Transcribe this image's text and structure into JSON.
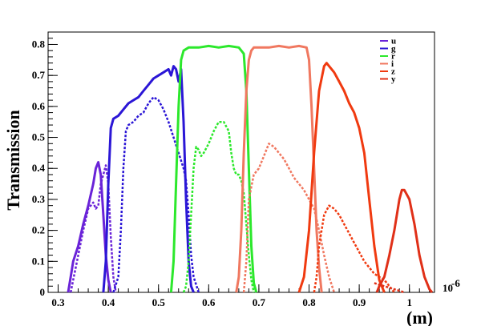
{
  "chart_data": {
    "type": "line",
    "title": "",
    "xlabel": "(m)",
    "x_exponent": "10",
    "x_exponent_power": "-6",
    "ylabel": "Transmission",
    "xlim": [
      0.28,
      1.05
    ],
    "ylim": [
      0,
      0.84
    ],
    "xticks": [
      0.3,
      0.4,
      0.5,
      0.6,
      0.7,
      0.8,
      0.9,
      1.0
    ],
    "xtick_labels": [
      "0.3",
      "0.4",
      "0.5",
      "0.6",
      "0.7",
      "0.8",
      "0.9",
      "1"
    ],
    "yticks": [
      0,
      0.1,
      0.2,
      0.3,
      0.4,
      0.5,
      0.6,
      0.7,
      0.8
    ],
    "ytick_labels": [
      "0",
      "0.1",
      "0.2",
      "0.3",
      "0.4",
      "0.5",
      "0.6",
      "0.7",
      "0.8"
    ],
    "legend_position": "top-right",
    "legend": [
      {
        "name": "u",
        "color": "#6a23d8"
      },
      {
        "name": "g",
        "color": "#2b16d6"
      },
      {
        "name": "r",
        "color": "#2ce82c"
      },
      {
        "name": "i",
        "color": "#f07860"
      },
      {
        "name": "z",
        "color": "#f03a10"
      },
      {
        "name": "y",
        "color": "#e03018"
      }
    ],
    "series": [
      {
        "band": "u",
        "style": "solid",
        "color": "#6a23d8",
        "points": [
          [
            0.32,
            0.0
          ],
          [
            0.325,
            0.05
          ],
          [
            0.33,
            0.1
          ],
          [
            0.34,
            0.15
          ],
          [
            0.35,
            0.22
          ],
          [
            0.36,
            0.28
          ],
          [
            0.37,
            0.35
          ],
          [
            0.375,
            0.4
          ],
          [
            0.38,
            0.42
          ],
          [
            0.385,
            0.38
          ],
          [
            0.39,
            0.25
          ],
          [
            0.395,
            0.12
          ],
          [
            0.4,
            0.04
          ],
          [
            0.405,
            0.0
          ]
        ]
      },
      {
        "band": "u",
        "style": "dotted",
        "color": "#6a23d8",
        "points": [
          [
            0.325,
            0.0
          ],
          [
            0.33,
            0.04
          ],
          [
            0.34,
            0.12
          ],
          [
            0.35,
            0.2
          ],
          [
            0.36,
            0.27
          ],
          [
            0.37,
            0.29
          ],
          [
            0.375,
            0.27
          ],
          [
            0.38,
            0.28
          ],
          [
            0.385,
            0.35
          ],
          [
            0.39,
            0.38
          ],
          [
            0.395,
            0.41
          ],
          [
            0.4,
            0.35
          ],
          [
            0.405,
            0.18
          ],
          [
            0.41,
            0.05
          ],
          [
            0.415,
            0.0
          ]
        ]
      },
      {
        "band": "g",
        "style": "solid",
        "color": "#2b16d6",
        "points": [
          [
            0.39,
            0.0
          ],
          [
            0.395,
            0.1
          ],
          [
            0.4,
            0.35
          ],
          [
            0.405,
            0.53
          ],
          [
            0.41,
            0.56
          ],
          [
            0.42,
            0.57
          ],
          [
            0.43,
            0.59
          ],
          [
            0.44,
            0.61
          ],
          [
            0.45,
            0.62
          ],
          [
            0.46,
            0.63
          ],
          [
            0.47,
            0.65
          ],
          [
            0.48,
            0.67
          ],
          [
            0.49,
            0.69
          ],
          [
            0.5,
            0.7
          ],
          [
            0.51,
            0.71
          ],
          [
            0.52,
            0.72
          ],
          [
            0.525,
            0.7
          ],
          [
            0.53,
            0.73
          ],
          [
            0.535,
            0.72
          ],
          [
            0.54,
            0.68
          ],
          [
            0.545,
            0.72
          ],
          [
            0.55,
            0.55
          ],
          [
            0.555,
            0.3
          ],
          [
            0.56,
            0.1
          ],
          [
            0.565,
            0.02
          ],
          [
            0.57,
            0.0
          ]
        ]
      },
      {
        "band": "g",
        "style": "dotted",
        "color": "#2b16d6",
        "points": [
          [
            0.41,
            0.0
          ],
          [
            0.42,
            0.05
          ],
          [
            0.425,
            0.2
          ],
          [
            0.43,
            0.4
          ],
          [
            0.435,
            0.52
          ],
          [
            0.44,
            0.54
          ],
          [
            0.45,
            0.55
          ],
          [
            0.46,
            0.57
          ],
          [
            0.47,
            0.58
          ],
          [
            0.48,
            0.61
          ],
          [
            0.49,
            0.63
          ],
          [
            0.5,
            0.62
          ],
          [
            0.51,
            0.59
          ],
          [
            0.52,
            0.55
          ],
          [
            0.53,
            0.5
          ],
          [
            0.54,
            0.45
          ],
          [
            0.55,
            0.4
          ],
          [
            0.555,
            0.36
          ],
          [
            0.56,
            0.25
          ],
          [
            0.565,
            0.12
          ],
          [
            0.57,
            0.05
          ],
          [
            0.58,
            0.0
          ]
        ]
      },
      {
        "band": "r",
        "style": "solid",
        "color": "#2ce82c",
        "points": [
          [
            0.525,
            0.0
          ],
          [
            0.53,
            0.1
          ],
          [
            0.535,
            0.35
          ],
          [
            0.54,
            0.6
          ],
          [
            0.545,
            0.75
          ],
          [
            0.55,
            0.78
          ],
          [
            0.56,
            0.79
          ],
          [
            0.58,
            0.79
          ],
          [
            0.6,
            0.795
          ],
          [
            0.62,
            0.79
          ],
          [
            0.64,
            0.795
          ],
          [
            0.66,
            0.79
          ],
          [
            0.67,
            0.77
          ],
          [
            0.675,
            0.65
          ],
          [
            0.68,
            0.4
          ],
          [
            0.685,
            0.15
          ],
          [
            0.69,
            0.03
          ],
          [
            0.695,
            0.0
          ]
        ]
      },
      {
        "band": "r",
        "style": "dotted",
        "color": "#2ce82c",
        "points": [
          [
            0.55,
            0.0
          ],
          [
            0.555,
            0.02
          ],
          [
            0.56,
            0.1
          ],
          [
            0.565,
            0.25
          ],
          [
            0.57,
            0.4
          ],
          [
            0.575,
            0.47
          ],
          [
            0.58,
            0.46
          ],
          [
            0.585,
            0.44
          ],
          [
            0.59,
            0.45
          ],
          [
            0.6,
            0.48
          ],
          [
            0.61,
            0.52
          ],
          [
            0.62,
            0.55
          ],
          [
            0.63,
            0.55
          ],
          [
            0.64,
            0.52
          ],
          [
            0.645,
            0.45
          ],
          [
            0.65,
            0.4
          ],
          [
            0.655,
            0.38
          ],
          [
            0.66,
            0.38
          ],
          [
            0.665,
            0.36
          ],
          [
            0.67,
            0.32
          ],
          [
            0.675,
            0.22
          ],
          [
            0.68,
            0.12
          ],
          [
            0.685,
            0.04
          ],
          [
            0.69,
            0.0
          ]
        ]
      },
      {
        "band": "i",
        "style": "solid",
        "color": "#f07860",
        "points": [
          [
            0.655,
            0.0
          ],
          [
            0.66,
            0.05
          ],
          [
            0.665,
            0.2
          ],
          [
            0.67,
            0.45
          ],
          [
            0.675,
            0.65
          ],
          [
            0.68,
            0.75
          ],
          [
            0.685,
            0.78
          ],
          [
            0.69,
            0.79
          ],
          [
            0.7,
            0.79
          ],
          [
            0.72,
            0.79
          ],
          [
            0.74,
            0.795
          ],
          [
            0.76,
            0.79
          ],
          [
            0.78,
            0.795
          ],
          [
            0.795,
            0.79
          ],
          [
            0.8,
            0.75
          ],
          [
            0.805,
            0.6
          ],
          [
            0.81,
            0.4
          ],
          [
            0.815,
            0.2
          ],
          [
            0.82,
            0.08
          ],
          [
            0.825,
            0.0
          ]
        ]
      },
      {
        "band": "i",
        "style": "dotted",
        "color": "#f07860",
        "points": [
          [
            0.67,
            0.0
          ],
          [
            0.675,
            0.1
          ],
          [
            0.68,
            0.3
          ],
          [
            0.69,
            0.38
          ],
          [
            0.7,
            0.4
          ],
          [
            0.71,
            0.44
          ],
          [
            0.72,
            0.48
          ],
          [
            0.73,
            0.47
          ],
          [
            0.74,
            0.45
          ],
          [
            0.75,
            0.43
          ],
          [
            0.76,
            0.4
          ],
          [
            0.77,
            0.37
          ],
          [
            0.78,
            0.35
          ],
          [
            0.79,
            0.33
          ],
          [
            0.8,
            0.3
          ],
          [
            0.81,
            0.27
          ],
          [
            0.82,
            0.2
          ],
          [
            0.83,
            0.12
          ],
          [
            0.84,
            0.05
          ],
          [
            0.85,
            0.0
          ]
        ]
      },
      {
        "band": "z",
        "style": "solid",
        "color": "#f03a10",
        "points": [
          [
            0.78,
            0.0
          ],
          [
            0.79,
            0.05
          ],
          [
            0.8,
            0.2
          ],
          [
            0.81,
            0.45
          ],
          [
            0.82,
            0.65
          ],
          [
            0.83,
            0.73
          ],
          [
            0.835,
            0.74
          ],
          [
            0.84,
            0.73
          ],
          [
            0.85,
            0.71
          ],
          [
            0.86,
            0.68
          ],
          [
            0.87,
            0.65
          ],
          [
            0.88,
            0.61
          ],
          [
            0.89,
            0.58
          ],
          [
            0.9,
            0.53
          ],
          [
            0.91,
            0.45
          ],
          [
            0.92,
            0.3
          ],
          [
            0.93,
            0.15
          ],
          [
            0.94,
            0.04
          ],
          [
            0.95,
            0.0
          ]
        ]
      },
      {
        "band": "z",
        "style": "dotted",
        "color": "#f03a10",
        "points": [
          [
            0.81,
            0.0
          ],
          [
            0.815,
            0.05
          ],
          [
            0.82,
            0.15
          ],
          [
            0.83,
            0.25
          ],
          [
            0.84,
            0.28
          ],
          [
            0.85,
            0.27
          ],
          [
            0.86,
            0.25
          ],
          [
            0.87,
            0.22
          ],
          [
            0.88,
            0.19
          ],
          [
            0.89,
            0.16
          ],
          [
            0.9,
            0.13
          ],
          [
            0.91,
            0.1
          ],
          [
            0.92,
            0.08
          ],
          [
            0.93,
            0.06
          ],
          [
            0.94,
            0.05
          ],
          [
            0.95,
            0.04
          ],
          [
            0.96,
            0.02
          ],
          [
            0.97,
            0.0
          ]
        ]
      },
      {
        "band": "y",
        "style": "solid",
        "color": "#e03018",
        "points": [
          [
            0.935,
            0.0
          ],
          [
            0.94,
            0.02
          ],
          [
            0.95,
            0.05
          ],
          [
            0.96,
            0.12
          ],
          [
            0.97,
            0.2
          ],
          [
            0.98,
            0.3
          ],
          [
            0.985,
            0.33
          ],
          [
            0.99,
            0.33
          ],
          [
            1.0,
            0.3
          ],
          [
            1.01,
            0.22
          ],
          [
            1.02,
            0.12
          ],
          [
            1.03,
            0.05
          ],
          [
            1.04,
            0.01
          ],
          [
            1.045,
            0.0
          ]
        ]
      },
      {
        "band": "y",
        "style": "dotted",
        "color": "#e03018",
        "points": [
          [
            0.93,
            0.03
          ],
          [
            0.95,
            0.02
          ],
          [
            0.97,
            0.01
          ],
          [
            0.99,
            0.0
          ]
        ]
      }
    ]
  }
}
